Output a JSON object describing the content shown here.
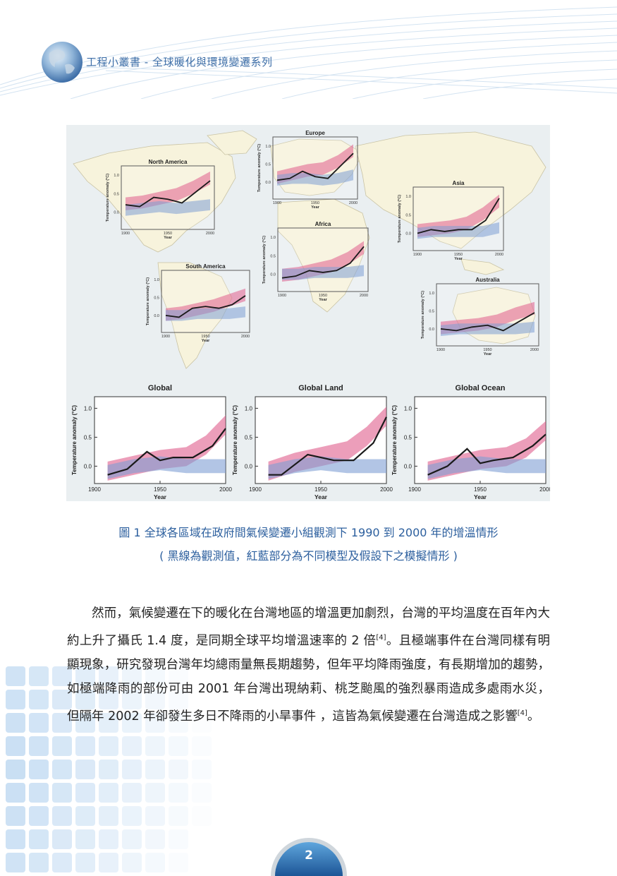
{
  "header": {
    "title": "工程小叢書 - 全球暖化與環境變遷系列"
  },
  "figure": {
    "regions": [
      {
        "name": "North America",
        "xticks": [
          "1900",
          "1950",
          "2000"
        ],
        "yticks": [
          "0.0",
          "0.5",
          "1.0"
        ]
      },
      {
        "name": "Europe",
        "xticks": [
          "1900",
          "1950",
          "2000"
        ],
        "yticks": [
          "0.0",
          "0.5",
          "1.0"
        ]
      },
      {
        "name": "Asia",
        "xticks": [
          "1900",
          "1950",
          "2000"
        ],
        "yticks": [
          "0.0",
          "0.5",
          "1.0"
        ]
      },
      {
        "name": "Africa",
        "xticks": [
          "1900",
          "1950",
          "2000"
        ],
        "yticks": [
          "0.0",
          "0.5",
          "1.0"
        ]
      },
      {
        "name": "South America",
        "xticks": [
          "1900",
          "1950",
          "2000"
        ],
        "yticks": [
          "0.0",
          "0.5",
          "1.0"
        ]
      },
      {
        "name": "Australia",
        "xticks": [
          "1900",
          "1950",
          "2000"
        ],
        "yticks": [
          "0.0",
          "0.5",
          "1.0"
        ]
      }
    ],
    "region_ylabel": "Temperature anomaly (°C)",
    "region_xlabel": "Year",
    "bottom_panels": [
      {
        "title": "Global",
        "ylabel": "Temperature anomaly (°C)",
        "xlabel": "Year"
      },
      {
        "title": "Global Land",
        "ylabel": "Temperature anomaly (°C)",
        "xlabel": "Year"
      },
      {
        "title": "Global Ocean",
        "ylabel": "Temperature anomaly (°C)",
        "xlabel": "Year"
      }
    ],
    "colors": {
      "observed": "#1a1a1a",
      "model_red": "#e05d8c",
      "model_blue": "#7e9fd4",
      "land": "#f7f3dc",
      "sea": "#eaeff1"
    }
  },
  "chart_data": [
    {
      "type": "line",
      "title": "Global",
      "xlabel": "Year",
      "ylabel": "Temperature anomaly (°C)",
      "xlim": [
        1900,
        2000
      ],
      "ylim": [
        -0.3,
        1.2
      ],
      "xticks": [
        "1900",
        "1950",
        "2000"
      ],
      "yticks": [
        "0.0",
        "0.5",
        "1.0"
      ],
      "series": [
        {
          "x": [
            1910,
            1925,
            1940,
            1950,
            1960,
            1975,
            1990,
            2000
          ],
          "values": [
            -0.15,
            -0.05,
            0.25,
            0.1,
            0.15,
            0.15,
            0.35,
            0.65
          ]
        },
        {
          "x": [
            1910,
            1930,
            1950,
            1970,
            1985,
            2000
          ],
          "values": [
            -0.1,
            0.0,
            0.1,
            0.15,
            0.35,
            0.7
          ]
        },
        {
          "x": [
            1910,
            1930,
            1950,
            1970,
            1985,
            2000
          ],
          "values": [
            -0.1,
            0.0,
            0.05,
            0.0,
            0.0,
            0.0
          ]
        }
      ]
    },
    {
      "type": "line",
      "title": "Global Land",
      "xlabel": "Year",
      "ylabel": "Temperature anomaly (°C)",
      "xlim": [
        1900,
        2000
      ],
      "ylim": [
        -0.3,
        1.2
      ],
      "xticks": [
        "1900",
        "1950",
        "2000"
      ],
      "yticks": [
        "0.0",
        "0.5",
        "1.0"
      ],
      "series": [
        {
          "x": [
            1910,
            1920,
            1940,
            1950,
            1960,
            1975,
            1990,
            2000
          ],
          "values": [
            -0.15,
            -0.15,
            0.2,
            0.15,
            0.1,
            0.1,
            0.4,
            0.85
          ]
        },
        {
          "x": [
            1910,
            1930,
            1950,
            1970,
            1985,
            2000
          ],
          "values": [
            -0.1,
            0.05,
            0.15,
            0.25,
            0.5,
            0.85
          ]
        },
        {
          "x": [
            1910,
            1930,
            1950,
            1970,
            1985,
            2000
          ],
          "values": [
            -0.1,
            0.0,
            0.05,
            0.0,
            0.0,
            0.0
          ]
        }
      ]
    },
    {
      "type": "line",
      "title": "Global Ocean",
      "xlabel": "Year",
      "ylabel": "Temperature anomaly (°C)",
      "xlim": [
        1900,
        2000
      ],
      "ylim": [
        -0.3,
        1.2
      ],
      "xticks": [
        "1900",
        "1950",
        "2000"
      ],
      "yticks": [
        "0.0",
        "0.5",
        "1.0"
      ],
      "series": [
        {
          "x": [
            1910,
            1925,
            1940,
            1950,
            1960,
            1975,
            1990,
            2000
          ],
          "values": [
            -0.15,
            0.0,
            0.3,
            0.05,
            0.1,
            0.15,
            0.35,
            0.55
          ]
        },
        {
          "x": [
            1910,
            1930,
            1950,
            1970,
            1985,
            2000
          ],
          "values": [
            -0.1,
            0.0,
            0.1,
            0.15,
            0.3,
            0.6
          ]
        },
        {
          "x": [
            1910,
            1930,
            1950,
            1970,
            1985,
            2000
          ],
          "values": [
            -0.1,
            0.0,
            0.05,
            0.0,
            0.0,
            0.0
          ]
        }
      ]
    }
  ],
  "caption": {
    "line1": "圖 1  全球各區域在政府間氣候變遷小組觀測下 1990 到 2000 年的增溫情形",
    "line2": "( 黑線為觀測值，紅藍部分為不同模型及假設下之模擬情形 )"
  },
  "body": {
    "text_a": "然而，氣候變遷在下的暖化在台灣地區的增溫更加劇烈，台灣的平均溫度在百年內大約上升了攝氏 1.4 度，是同期全球平均增溫速率的 2 倍",
    "ref_a": "[4]",
    "text_b": "。且極端事件在台灣同樣有明顯現象，研究發現台灣年均總雨量無長期趨勢，但年平均降雨強度，有長期增加的趨勢，如極端降雨的部份可由 2001 年台灣出現納莉、桃芝颱風的強烈暴雨造成多處雨水災，但隔年 2002 年卻發生多日不降雨的小旱事件 ，這皆為氣候變遷在台灣造成之影響",
    "ref_b": "[4]",
    "text_c": "。"
  },
  "page": {
    "number": "2"
  }
}
